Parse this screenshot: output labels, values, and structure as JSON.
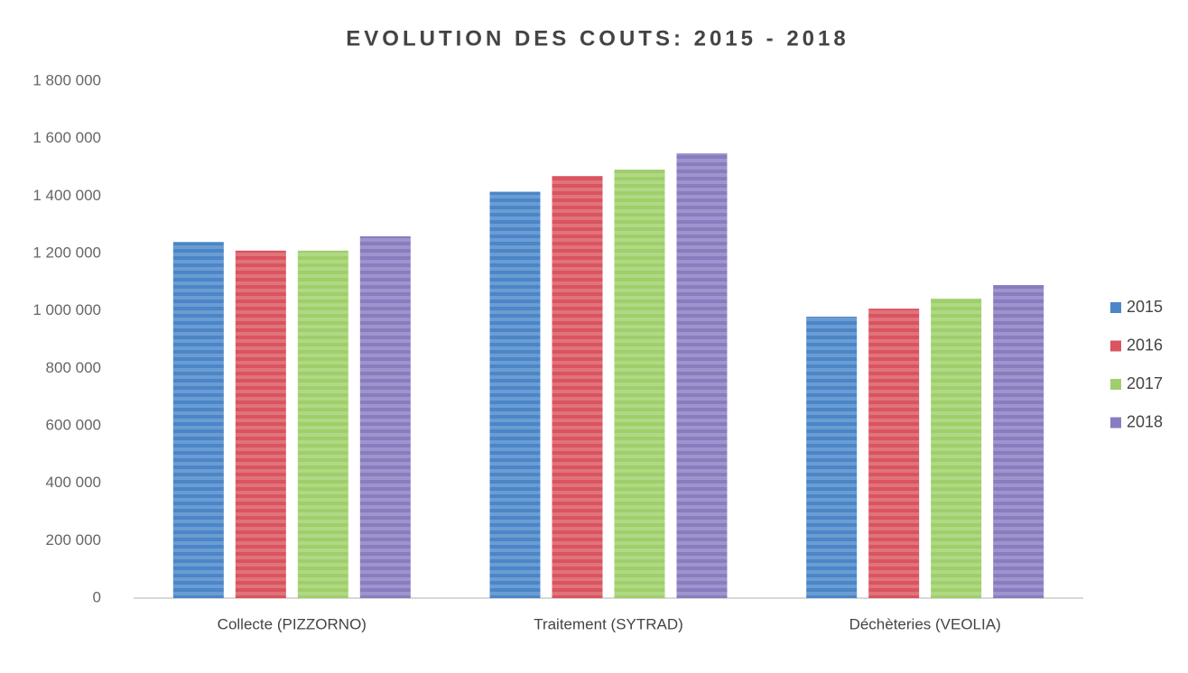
{
  "chart_data": {
    "type": "bar",
    "title": "EVOLUTION DES COUTS: 2015 - 2018",
    "categories": [
      "Collecte (PIZZORNO)",
      "Traitement (SYTRAD)",
      "Déchèteries (VEOLIA)"
    ],
    "series": [
      {
        "name": "2015",
        "color": "#4a86c8",
        "values": [
          1240000,
          1415000,
          980000
        ]
      },
      {
        "name": "2016",
        "color": "#d9545e",
        "values": [
          1210000,
          1470000,
          1008000
        ]
      },
      {
        "name": "2017",
        "color": "#9fcf6a",
        "values": [
          1210000,
          1492000,
          1043000
        ]
      },
      {
        "name": "2018",
        "color": "#8a7cc0",
        "values": [
          1260000,
          1549000,
          1090000
        ]
      }
    ],
    "ylim": [
      0,
      1800000
    ],
    "yticks": [
      0,
      {
        "value": 200000,
        "label": "200 000"
      },
      {
        "value": 400000,
        "label": "400 000"
      },
      {
        "value": 600000,
        "label": "600 000"
      },
      {
        "value": 800000,
        "label": "800 000"
      },
      {
        "value": 1000000,
        "label": "1 000 000"
      },
      {
        "value": 1200000,
        "label": "1 200 000"
      },
      {
        "value": 1400000,
        "label": "1 400 000"
      },
      {
        "value": 1600000,
        "label": "1 600 000"
      },
      {
        "value": 1800000,
        "label": "1 800 000"
      }
    ],
    "grid": false,
    "legend": "right"
  }
}
